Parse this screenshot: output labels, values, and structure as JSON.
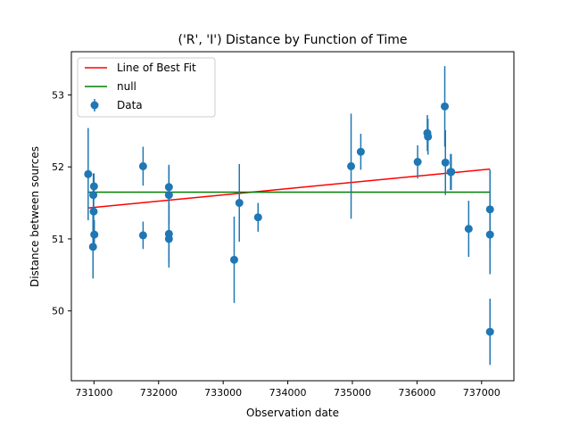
{
  "chart_data": {
    "type": "scatter",
    "title": "('R', 'I') Distance by Function of Time",
    "xlabel": "Observation date",
    "ylabel": "Distance between sources",
    "xlim": [
      730650,
      737500
    ],
    "ylim": [
      49.03,
      53.6
    ],
    "x_ticks": [
      731000,
      732000,
      733000,
      734000,
      735000,
      736000,
      737000
    ],
    "y_ticks": [
      50,
      51,
      52,
      53
    ],
    "grid": false,
    "legend_position": "top-left",
    "legend": [
      "Line of Best Fit",
      "null",
      "Data"
    ],
    "colors": {
      "fit": "#ff0000",
      "null": "#008000",
      "data": "#1f77b4"
    },
    "series": [
      {
        "name": "Data",
        "points": [
          {
            "x": 730910,
            "y": 51.9,
            "err": 0.64
          },
          {
            "x": 730990,
            "y": 51.61,
            "err": 0.3
          },
          {
            "x": 731000,
            "y": 51.73,
            "err": 0.18
          },
          {
            "x": 730995,
            "y": 51.38,
            "err": 0.2
          },
          {
            "x": 731005,
            "y": 51.06,
            "err": 0.2
          },
          {
            "x": 730985,
            "y": 50.89,
            "err": 0.44
          },
          {
            "x": 731760,
            "y": 52.01,
            "err": 0.27
          },
          {
            "x": 731760,
            "y": 51.05,
            "err": 0.19
          },
          {
            "x": 732160,
            "y": 51.72,
            "err": 0.31
          },
          {
            "x": 732160,
            "y": 51.61,
            "err": 0.4
          },
          {
            "x": 732160,
            "y": 51.07,
            "err": 0.4
          },
          {
            "x": 732160,
            "y": 51.0,
            "err": 0.4
          },
          {
            "x": 733170,
            "y": 50.71,
            "err": 0.6
          },
          {
            "x": 733250,
            "y": 51.5,
            "err": 0.54
          },
          {
            "x": 733540,
            "y": 51.3,
            "err": 0.2
          },
          {
            "x": 734980,
            "y": 52.01,
            "err": 0.73
          },
          {
            "x": 735130,
            "y": 52.21,
            "err": 0.25
          },
          {
            "x": 736010,
            "y": 52.07,
            "err": 0.23
          },
          {
            "x": 736160,
            "y": 52.47,
            "err": 0.25
          },
          {
            "x": 736170,
            "y": 52.42,
            "err": 0.25
          },
          {
            "x": 736430,
            "y": 52.84,
            "err": 0.56
          },
          {
            "x": 736440,
            "y": 52.06,
            "err": 0.45
          },
          {
            "x": 736520,
            "y": 51.93,
            "err": 0.25
          },
          {
            "x": 736530,
            "y": 51.93,
            "err": 0.25
          },
          {
            "x": 736800,
            "y": 51.14,
            "err": 0.39
          },
          {
            "x": 737130,
            "y": 51.41,
            "err": 0.55
          },
          {
            "x": 737130,
            "y": 51.06,
            "err": 0.55
          },
          {
            "x": 737130,
            "y": 49.71,
            "err": 0.46
          }
        ]
      },
      {
        "name": "Line of Best Fit",
        "x": [
          730910,
          737130
        ],
        "y": [
          51.43,
          51.97
        ]
      },
      {
        "name": "null",
        "x": [
          730910,
          737130
        ],
        "y": [
          51.65,
          51.65
        ]
      }
    ]
  }
}
